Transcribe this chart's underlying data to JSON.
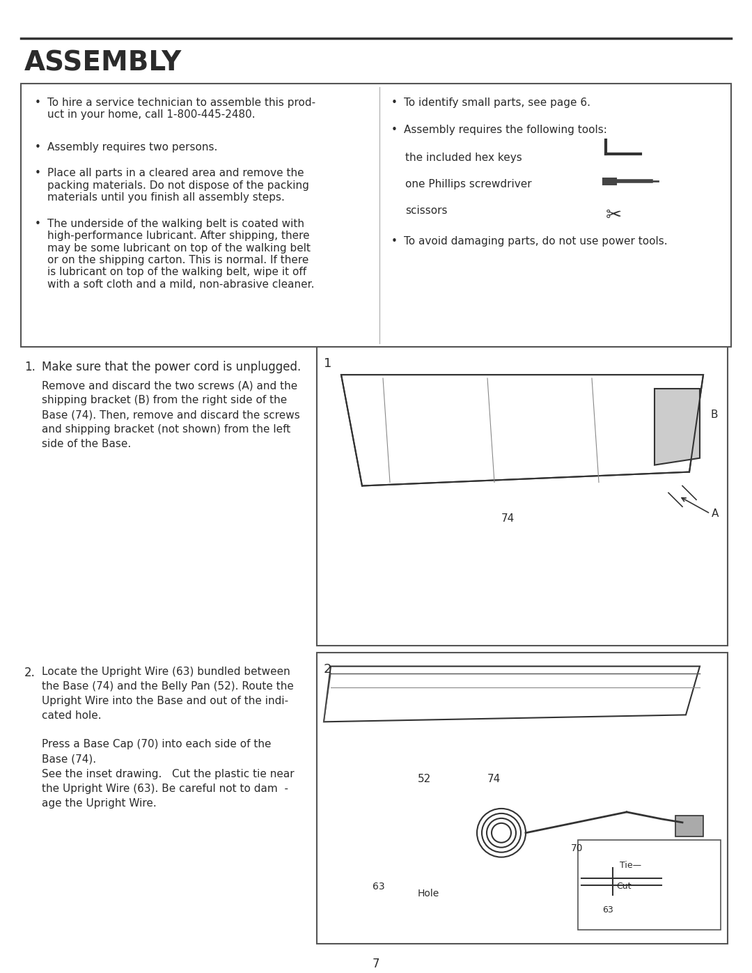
{
  "title": "ASSEMBLY",
  "page_number": "7",
  "background_color": "#ffffff",
  "text_color": "#2b2b2b",
  "box_bullet_points_left": [
    "To hire a service technician to assemble this prod-\nuct in your home, call 1-800-445-2480.",
    "Assembly requires two persons.",
    "Place all parts in a cleared area and remove the\npacking materials. Do not dispose of the packing\nmaterials until you finish all assembly steps.",
    "The underside of the walking belt is coated with\nhigh-performance lubricant. After shipping, there\nmay be some lubricant on top of the walking belt\nor on the shipping carton. This is normal. If there\nis lubricant on top of the walking belt, wipe it off\nwith a soft cloth and a mild, non-abrasive cleaner."
  ],
  "box_bullet_points_right": [
    "To identify small parts, see page 6.",
    "Assembly requires the following tools:",
    "To avoid damaging parts, do not use power tools."
  ],
  "tools": [
    "the included hex keys",
    "one Phillips screwdriver",
    "scissors"
  ],
  "step1_num": "1.",
  "step1_title": "Make sure that the power cord is unplugged.",
  "step1_body": "Remove and discard the two screws (A) and the\nshipping bracket (B) from the right side of the\nBase (74). Then, remove and discard the screws\nand shipping bracket (not shown) from the left\nside of the Base.",
  "step2_num": "2.",
  "step2_body1": "Locate the Upright Wire (63) bundled between\nthe Base (74) and the Belly Pan (52). Route the\nUpright Wire into the Base and out of the indi-\ncated hole.",
  "step2_body2": "Press a Base Cap (70) into each side of the\nBase (74).",
  "step2_body3": "See the inset drawing.   Cut the plastic tie near\nthe Upright Wire (63). Be careful not to dam  -\nage the Upright Wire."
}
